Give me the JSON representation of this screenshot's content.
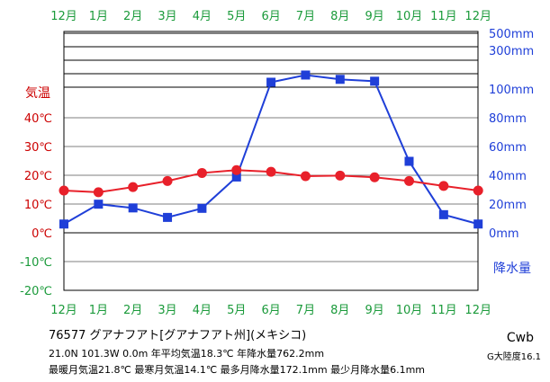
{
  "chart_data": {
    "type": "line",
    "months_top": [
      "12月",
      "1月",
      "2月",
      "3月",
      "4月",
      "5月",
      "6月",
      "7月",
      "8月",
      "9月",
      "10月",
      "11月",
      "12月"
    ],
    "months_bottom": [
      "12月",
      "1月",
      "2月",
      "3月",
      "4月",
      "5月",
      "6月",
      "7月",
      "8月",
      "9月",
      "10月",
      "11月",
      "12月"
    ],
    "temp_axis_title": "気温",
    "precip_axis_title": "降水量",
    "temp_ticks": [
      "40℃",
      "30℃",
      "20℃",
      "10℃",
      "0℃",
      "-10℃",
      "-20℃"
    ],
    "temp_tick_values": [
      40,
      30,
      20,
      10,
      0,
      -10,
      -20
    ],
    "precip_ticks_log": [
      {
        "label": "500mm",
        "value": 500
      },
      {
        "label": "300mm",
        "value": 300
      }
    ],
    "precip_ticks_linear": [
      {
        "label": "100mm",
        "value": 100
      },
      {
        "label": "80mm",
        "value": 80
      },
      {
        "label": "60mm",
        "value": 60
      },
      {
        "label": "40mm",
        "value": 40
      },
      {
        "label": "20mm",
        "value": 20
      },
      {
        "label": "0mm",
        "value": 0
      }
    ],
    "temperature": {
      "name": "気温",
      "color": "#e8202a",
      "values": [
        14.7,
        14.1,
        15.9,
        18.0,
        20.8,
        21.8,
        21.2,
        19.7,
        19.9,
        19.3,
        18.0,
        16.3,
        14.7
      ]
    },
    "precipitation": {
      "name": "降水量",
      "color": "#1f3fd8",
      "values": [
        6.1,
        19.9,
        17.3,
        10.7,
        17.0,
        38.8,
        104.7,
        109.7,
        106.7,
        105.4,
        49.7,
        12.6,
        6.1
      ]
    },
    "colors": {
      "month_label": "#1a9a3a",
      "temp_label": "#cc0000",
      "precip_label": "#1f3fd8",
      "gridline": "#000000"
    }
  },
  "footer": {
    "line1": "76577 グアナフアト[グアナフアト州](メキシコ)",
    "line2": "21.0N 101.3W 0.0m 年平均気温18.3℃ 年降水量762.2mm",
    "line3": "最暖月気温21.8℃ 最寒月気温14.1℃ 最多月降水量172.1mm 最少月降水量6.1mm",
    "climate_code": "Cwb",
    "continentality": "G大陸度16.1"
  }
}
